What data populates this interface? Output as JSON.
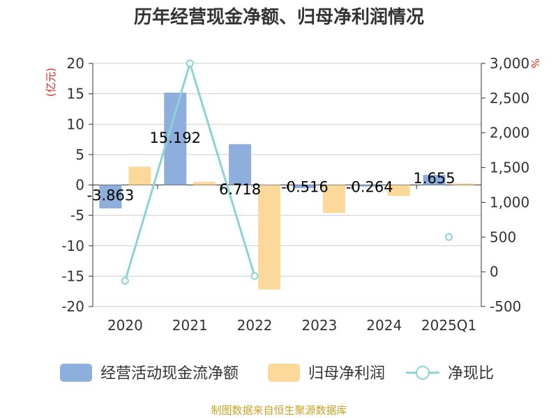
{
  "chart_data": {
    "type": "bar+line",
    "title": "历年经营现金净额、归母净利润情况",
    "left_unit": "(亿元)",
    "right_unit": "%",
    "categories": [
      "2020",
      "2021",
      "2022",
      "2023",
      "2024",
      "2025Q1"
    ],
    "left_ylim": [
      -20,
      20
    ],
    "left_ticks": [
      "20",
      "15",
      "10",
      "5",
      "0",
      "-5",
      "-10",
      "-15",
      "-20"
    ],
    "right_ylim": [
      -500,
      3000
    ],
    "right_ticks": [
      "3,000",
      "2,500",
      "2,000",
      "1,500",
      "1,000",
      "500",
      "0",
      "-500"
    ],
    "series": [
      {
        "name": "经营活动现金流净额",
        "type": "bar",
        "axis": "left",
        "color": "#8eaedb",
        "values": [
          -3.863,
          15.192,
          6.718,
          -0.516,
          -0.264,
          1.655
        ],
        "labels": [
          "-3.863",
          "15.192",
          "6.718",
          "-0.516",
          "-0.264",
          "1.655"
        ]
      },
      {
        "name": "归母净利润",
        "type": "bar",
        "axis": "left",
        "color": "#fdd89b",
        "values": [
          3.0,
          0.5,
          -17.2,
          -4.6,
          -1.8,
          0.25
        ]
      },
      {
        "name": "净现比",
        "type": "line",
        "axis": "right",
        "color": "#8ad3d8",
        "values": [
          -130,
          3000,
          -60,
          null,
          null,
          500
        ]
      }
    ],
    "grid": true,
    "legend_position": "bottom"
  },
  "source_text": "制图数据来自恒生聚源数据库"
}
